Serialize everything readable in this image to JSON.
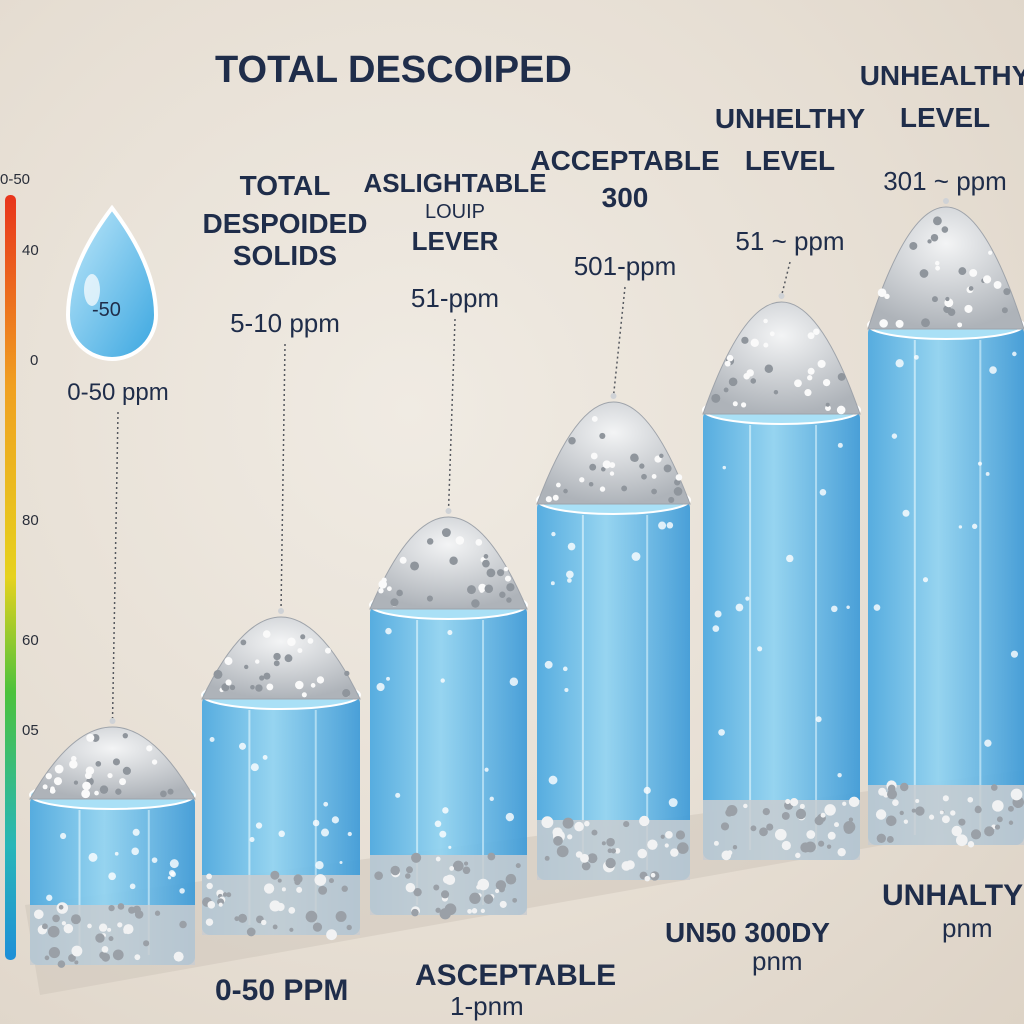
{
  "chart_data": {
    "type": "bar",
    "title": "TOTAL DESCOIPED",
    "ylabel": "",
    "xlabel": "",
    "y_axis_ticks": [
      "0-50",
      "40",
      "0",
      "80",
      "60",
      "05"
    ],
    "categories": [
      "0-50 ppm",
      "5-10 ppm",
      "51-ppm",
      "501-ppm",
      "51 ~ ppm",
      "301 ~ ppm"
    ],
    "values": [
      1,
      2,
      3,
      4,
      5,
      6
    ],
    "top_labels": [
      [
        "0-50 ppm"
      ],
      [
        "TOTAL",
        "DESPOIDED",
        "SOLIDS",
        "5-10 ppm"
      ],
      [
        "ASLIGHTABLE",
        "LOUIP",
        "LEVER",
        "51-ppm"
      ],
      [
        "ACCEPTABLE",
        "300",
        "501-ppm"
      ],
      [
        "UNHELTHY",
        "LEVEL",
        "51 ~ ppm"
      ],
      [
        "UNHEALTHY",
        "LEVEL",
        "301 ~ ppm"
      ]
    ],
    "drop_label": "-50",
    "bottom_labels": [
      "0-50 PPM",
      "ASCEPTABLE",
      "1-pnm",
      "UN50 300DY",
      "pnm",
      "UNHALTY",
      "pnm"
    ],
    "colors": {
      "water": "#5bb8e6",
      "water_dark": "#2f8fd0",
      "sediment": "#cfd2d6",
      "text": "#1f2d4a",
      "scale_top": "#e8341c",
      "scale_bottom": "#1e8fd8"
    }
  }
}
